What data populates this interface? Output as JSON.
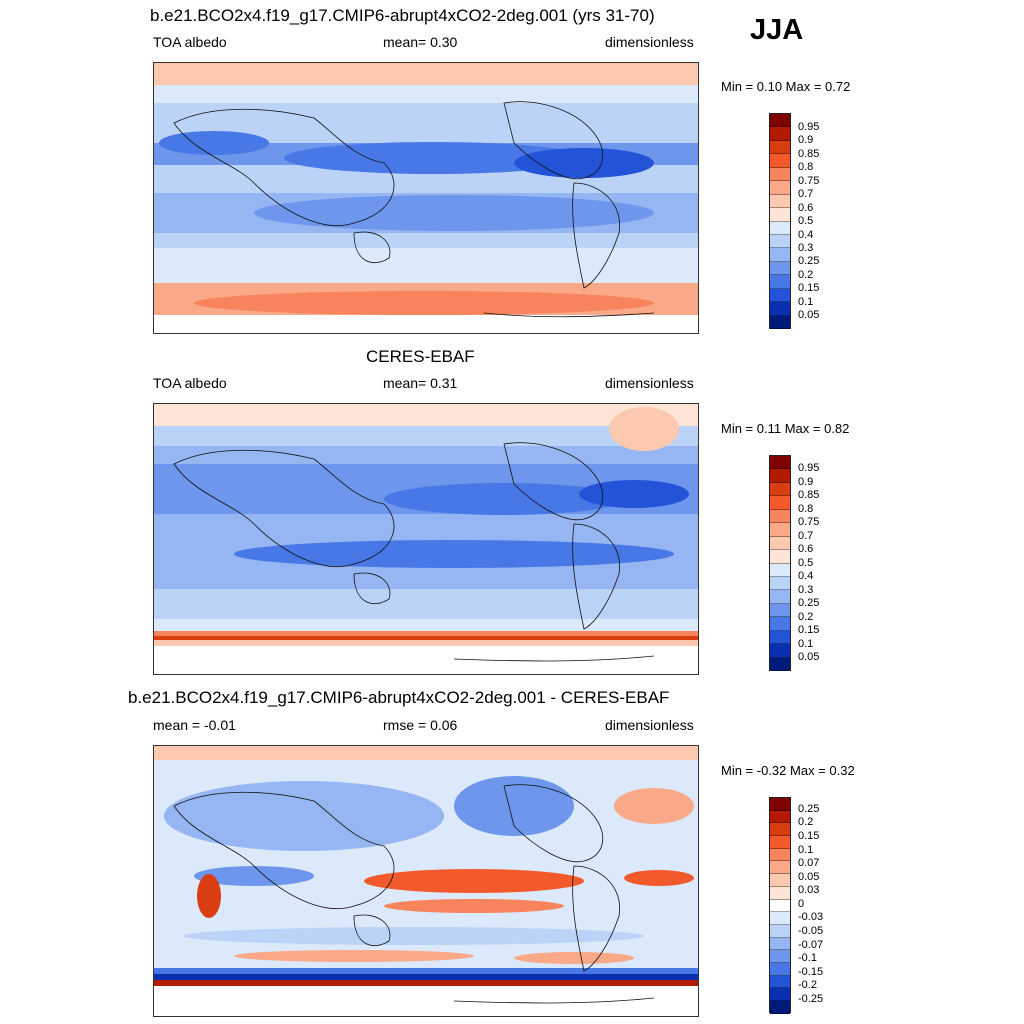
{
  "season": "JJA",
  "panels": [
    {
      "title": "b.e21.BCO2x4.f19_g17.CMIP6-abrupt4xCO2-2deg.001 (yrs 31-70)",
      "left": "TOA albedo",
      "center": "mean=   0.30",
      "right": "dimensionless",
      "minmax": "Min =   0.10 Max =   0.72",
      "colorbar_labels": [
        "0.95",
        "0.9",
        "0.85",
        "0.8",
        "0.75",
        "0.7",
        "0.6",
        "0.5",
        "0.4",
        "0.3",
        "0.25",
        "0.2",
        "0.15",
        "0.1",
        "0.05"
      ]
    },
    {
      "title": "CERES-EBAF",
      "left": "TOA albedo",
      "center": "mean=   0.31",
      "right": "dimensionless",
      "minmax": "Min =   0.11 Max =   0.82",
      "colorbar_labels": [
        "0.95",
        "0.9",
        "0.85",
        "0.8",
        "0.75",
        "0.7",
        "0.6",
        "0.5",
        "0.4",
        "0.3",
        "0.25",
        "0.2",
        "0.15",
        "0.1",
        "0.05"
      ]
    },
    {
      "title": "b.e21.BCO2x4.f19_g17.CMIP6-abrupt4xCO2-2deg.001 - CERES-EBAF",
      "left": "mean =  -0.01",
      "center": "rmse =   0.06",
      "right": "dimensionless",
      "minmax": "Min =  -0.32 Max =   0.32",
      "colorbar_labels": [
        "0.25",
        "0.2",
        "0.15",
        "0.1",
        "0.07",
        "0.05",
        "0.03",
        "0",
        "-0.03",
        "-0.05",
        "-0.07",
        "-0.1",
        "-0.15",
        "-0.2",
        "-0.25"
      ]
    }
  ],
  "colors": {
    "albedo_scale": [
      "#7f0000",
      "#b31b00",
      "#d93d12",
      "#f2592b",
      "#f7845c",
      "#f9a888",
      "#fbc9b0",
      "#fde4d6",
      "#dce9fb",
      "#bcd3f8",
      "#95b6f2",
      "#6d96ec",
      "#4778e6",
      "#2354d8",
      "#0a2fb0",
      "#001a7a"
    ],
    "diff_scale": [
      "#7f0000",
      "#b31b00",
      "#d93d12",
      "#f2592b",
      "#f7845c",
      "#f9a888",
      "#fbc9b0",
      "#fde4d6",
      "#ffffff",
      "#dce9fb",
      "#bcd3f8",
      "#95b6f2",
      "#6d96ec",
      "#4778e6",
      "#2354d8",
      "#0a2fb0",
      "#001a7a"
    ]
  }
}
